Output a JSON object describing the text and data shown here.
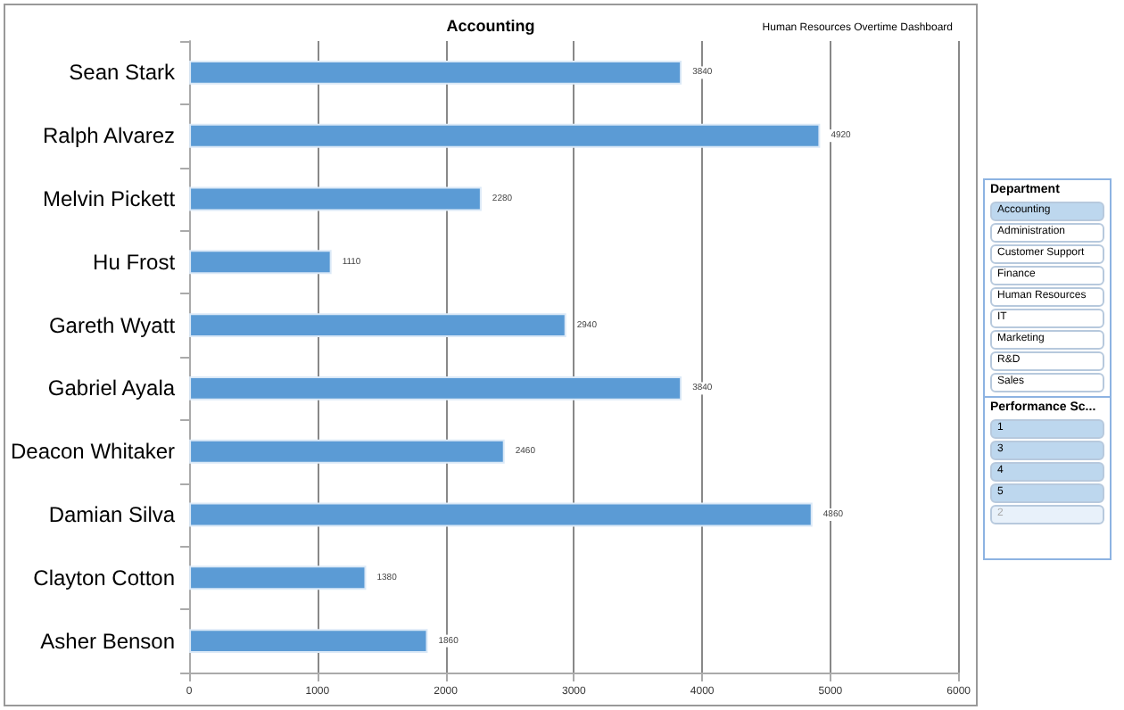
{
  "chart_data": [
    {
      "type": "bar",
      "title": "Accounting",
      "subtitle": "Human Resources Overtime Dashboard",
      "orientation": "horizontal",
      "categories": [
        "Sean Stark",
        "Ralph Alvarez",
        "Melvin Pickett",
        "Hu Frost",
        "Gareth Wyatt",
        "Gabriel Ayala",
        "Deacon Whitaker",
        "Damian Silva",
        "Clayton Cotton",
        "Asher Benson"
      ],
      "values": [
        3840,
        4920,
        2280,
        1110,
        2940,
        3840,
        2460,
        4860,
        1380,
        1860
      ],
      "color": "#5b9bd5",
      "xlim": [
        0,
        6000
      ],
      "xticks": [
        0,
        1000,
        2000,
        3000,
        4000,
        5000,
        6000
      ],
      "grid": "x",
      "data_labels": true
    },
    {
      "type": "other",
      "title": "Department",
      "annotations": [
        "Accounting",
        "Administration",
        "Customer Support",
        "Finance",
        "Human Resources",
        "IT",
        "Marketing",
        "R&D",
        "Sales"
      ]
    },
    {
      "type": "other",
      "title": "Performance Sc...",
      "annotations": [
        "1",
        "3",
        "4",
        "5",
        "2"
      ]
    }
  ]
}
